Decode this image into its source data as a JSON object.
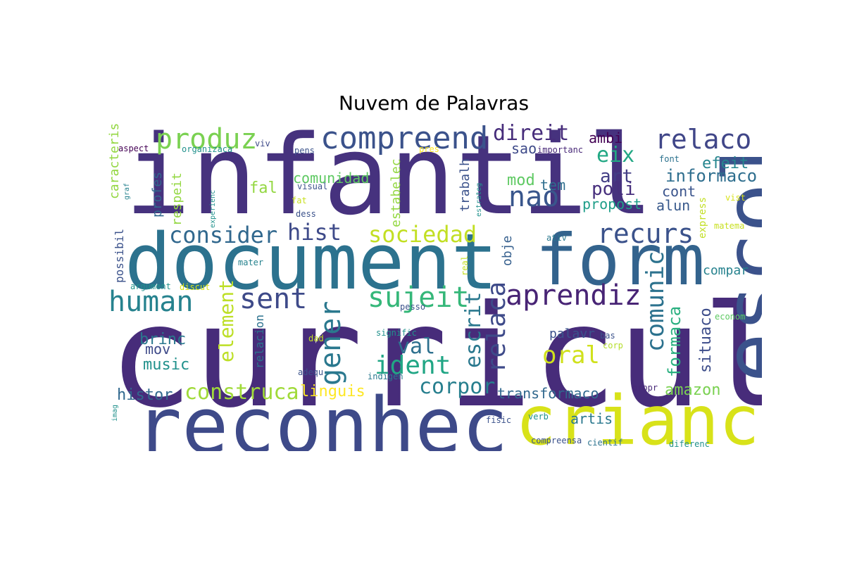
{
  "title": "Nuvem de Palavras",
  "chart_data": {
    "type": "wordcloud",
    "title": "Nuvem de Palavras",
    "colormap": "viridis",
    "background": "#ffffff",
    "words": [
      {
        "text": "curricul",
        "weight": 100,
        "color": "#472c7a",
        "vertical": false
      },
      {
        "text": "infantil",
        "weight": 92,
        "color": "#46327e",
        "vertical": false
      },
      {
        "text": "document",
        "weight": 76,
        "color": "#2c728e",
        "vertical": false
      },
      {
        "text": "reconhec",
        "weight": 74,
        "color": "#3e4a89",
        "vertical": false
      },
      {
        "text": "escol",
        "weight": 70,
        "color": "#3b528b",
        "vertical": true
      },
      {
        "text": "form",
        "weight": 66,
        "color": "#33638d",
        "vertical": false
      },
      {
        "text": "crianc",
        "weight": 62,
        "color": "#d8e219",
        "vertical": false
      },
      {
        "text": "compreend",
        "weight": 34,
        "color": "#3b528b",
        "vertical": false
      },
      {
        "text": "produz",
        "weight": 30,
        "color": "#7ad151",
        "vertical": false
      },
      {
        "text": "relaco",
        "weight": 28,
        "color": "#404688",
        "vertical": false
      },
      {
        "text": "nao",
        "weight": 28,
        "color": "#39568c",
        "vertical": false
      },
      {
        "text": "human",
        "weight": 28,
        "color": "#26828e",
        "vertical": false
      },
      {
        "text": "sent",
        "weight": 28,
        "color": "#3e4a89",
        "vertical": false
      },
      {
        "text": "gener",
        "weight": 28,
        "color": "#2a788e",
        "vertical": true
      },
      {
        "text": "aprendiz",
        "weight": 27,
        "color": "#482475",
        "vertical": false
      },
      {
        "text": "recurs",
        "weight": 27,
        "color": "#3b528b",
        "vertical": false
      },
      {
        "text": "sujeit",
        "weight": 26,
        "color": "#35b779",
        "vertical": false
      },
      {
        "text": "ident",
        "weight": 26,
        "color": "#21a685",
        "vertical": false
      },
      {
        "text": "relaca",
        "weight": 26,
        "color": "#3e4a89",
        "vertical": true
      },
      {
        "text": "oral",
        "weight": 24,
        "color": "#d0e11c",
        "vertical": false
      },
      {
        "text": "comunic",
        "weight": 24,
        "color": "#2c728e",
        "vertical": true
      },
      {
        "text": "consider",
        "weight": 22,
        "color": "#31688e",
        "vertical": false
      },
      {
        "text": "hist",
        "weight": 22,
        "color": "#3e4a89",
        "vertical": false
      },
      {
        "text": "sociedad",
        "weight": 22,
        "color": "#c2df23",
        "vertical": false
      },
      {
        "text": "construca",
        "weight": 22,
        "color": "#a0da39",
        "vertical": false
      },
      {
        "text": "corpor",
        "weight": 22,
        "color": "#277f8e",
        "vertical": false
      },
      {
        "text": "escrit",
        "weight": 22,
        "color": "#2a788e",
        "vertical": true
      },
      {
        "text": "val",
        "weight": 22,
        "color": "#2d708e",
        "vertical": false
      },
      {
        "text": "direit",
        "weight": 20,
        "color": "#472d7b",
        "vertical": false
      },
      {
        "text": "eix",
        "weight": 20,
        "color": "#22a884",
        "vertical": false
      },
      {
        "text": "element",
        "weight": 20,
        "color": "#bddf26",
        "vertical": true
      },
      {
        "text": "art",
        "weight": 18,
        "color": "#433e85",
        "vertical": false
      },
      {
        "text": "poli",
        "weight": 18,
        "color": "#472f7d",
        "vertical": false
      },
      {
        "text": "informaco",
        "weight": 17,
        "color": "#2e6e8e",
        "vertical": false
      },
      {
        "text": "formaca",
        "weight": 17,
        "color": "#29af7f",
        "vertical": true
      },
      {
        "text": "situaco",
        "weight": 17,
        "color": "#3d4d8a",
        "vertical": true
      },
      {
        "text": "amazon",
        "weight": 17,
        "color": "#7ad151",
        "vertical": false
      },
      {
        "text": "linguis",
        "weight": 17,
        "color": "#fde725",
        "vertical": false
      },
      {
        "text": "brinc",
        "weight": 17,
        "color": "#2a788e",
        "vertical": false
      },
      {
        "text": "music",
        "weight": 17,
        "color": "#21918c",
        "vertical": false
      },
      {
        "text": "histor",
        "weight": 17,
        "color": "#31688e",
        "vertical": false
      },
      {
        "text": "fal",
        "weight": 17,
        "color": "#93d741",
        "vertical": false
      },
      {
        "text": "mod",
        "weight": 16,
        "color": "#5ec962",
        "vertical": false
      },
      {
        "text": "tem",
        "weight": 16,
        "color": "#2e6e8e",
        "vertical": false
      },
      {
        "text": "propost",
        "weight": 16,
        "color": "#1f9e89",
        "vertical": false
      },
      {
        "text": "alun",
        "weight": 16,
        "color": "#38598c",
        "vertical": false
      },
      {
        "text": "cont",
        "weight": 16,
        "color": "#3a548c",
        "vertical": false
      },
      {
        "text": "efeit",
        "weight": 16,
        "color": "#25858e",
        "vertical": false
      },
      {
        "text": "compar",
        "weight": 15,
        "color": "#26828e",
        "vertical": false
      },
      {
        "text": "transformaco",
        "weight": 15,
        "color": "#31688e",
        "vertical": false
      },
      {
        "text": "palavr",
        "weight": 15,
        "color": "#3b528b",
        "vertical": false
      },
      {
        "text": "artis",
        "weight": 15,
        "color": "#2a788e",
        "vertical": false
      },
      {
        "text": "mov",
        "weight": 15,
        "color": "#3e4a89",
        "vertical": false
      },
      {
        "text": "comunidad",
        "weight": 15,
        "color": "#5ec962",
        "vertical": false
      },
      {
        "text": "ambi",
        "weight": 15,
        "color": "#440154",
        "vertical": false
      },
      {
        "text": "sao",
        "weight": 15,
        "color": "#3e4a89",
        "vertical": false
      },
      {
        "text": "obje",
        "weight": 15,
        "color": "#355f8d",
        "vertical": true
      },
      {
        "text": "trabalh",
        "weight": 15,
        "color": "#3b528b",
        "vertical": true
      },
      {
        "text": "estabelec",
        "weight": 14,
        "color": "#93d741",
        "vertical": true
      },
      {
        "text": "respeit",
        "weight": 14,
        "color": "#93d741",
        "vertical": true
      },
      {
        "text": "profes",
        "weight": 14,
        "color": "#31688e",
        "vertical": true
      },
      {
        "text": "caracteris",
        "weight": 14,
        "color": "#93d741",
        "vertical": true
      },
      {
        "text": "possibil",
        "weight": 13,
        "color": "#3b528b",
        "vertical": true
      },
      {
        "text": "relacion",
        "weight": 13,
        "color": "#2c728e",
        "vertical": true
      },
      {
        "text": "express",
        "weight": 13,
        "color": "#c2df23",
        "vertical": true
      },
      {
        "text": "importanc",
        "weight": 11,
        "color": "#482878",
        "vertical": false
      },
      {
        "text": "aspect",
        "weight": 10,
        "color": "#440154",
        "vertical": false
      },
      {
        "text": "organizaca",
        "weight": 10,
        "color": "#21918c",
        "vertical": false
      },
      {
        "text": "viv",
        "weight": 10,
        "color": "#3e4a89",
        "vertical": false
      },
      {
        "text": "pens",
        "weight": 10,
        "color": "#3b528b",
        "vertical": false
      },
      {
        "text": "pres",
        "weight": 10,
        "color": "#fde725",
        "vertical": false
      },
      {
        "text": "font",
        "weight": 10,
        "color": "#2c728e",
        "vertical": false
      },
      {
        "text": "visual",
        "weight": 10,
        "color": "#3b528b",
        "vertical": false
      },
      {
        "text": "fat",
        "weight": 10,
        "color": "#c8e020",
        "vertical": false
      },
      {
        "text": "dess",
        "weight": 10,
        "color": "#3b528b",
        "vertical": false
      },
      {
        "text": "vist",
        "weight": 10,
        "color": "#d8e219",
        "vertical": false
      },
      {
        "text": "matema",
        "weight": 10,
        "color": "#c8e020",
        "vertical": false
      },
      {
        "text": "ativ",
        "weight": 10,
        "color": "#2a788e",
        "vertical": false
      },
      {
        "text": "mater",
        "weight": 10,
        "color": "#26828e",
        "vertical": false
      },
      {
        "text": "argument",
        "weight": 10,
        "color": "#21918c",
        "vertical": false
      },
      {
        "text": "discut",
        "weight": 10,
        "color": "#d8e219",
        "vertical": false
      },
      {
        "text": "real",
        "weight": 10,
        "color": "#c2df23",
        "vertical": true
      },
      {
        "text": "pesso",
        "weight": 10,
        "color": "#3b528b",
        "vertical": false
      },
      {
        "text": "econom",
        "weight": 10,
        "color": "#5ec962",
        "vertical": false
      },
      {
        "text": "signific",
        "weight": 10,
        "color": "#21918c",
        "vertical": false
      },
      {
        "text": "dad",
        "weight": 10,
        "color": "#c2df23",
        "vertical": false
      },
      {
        "text": "bas",
        "weight": 10,
        "color": "#3b528b",
        "vertical": false
      },
      {
        "text": "corp",
        "weight": 10,
        "color": "#b5de2b",
        "vertical": false
      },
      {
        "text": "adequ",
        "weight": 10,
        "color": "#3b528b",
        "vertical": false
      },
      {
        "text": "indigen",
        "weight": 10,
        "color": "#2a788e",
        "vertical": false
      },
      {
        "text": "propr",
        "weight": 10,
        "color": "#482878",
        "vertical": false
      },
      {
        "text": "fisic",
        "weight": 10,
        "color": "#3b528b",
        "vertical": false
      },
      {
        "text": "verb",
        "weight": 10,
        "color": "#21918c",
        "vertical": false
      },
      {
        "text": "compreensa",
        "weight": 10,
        "color": "#3b528b",
        "vertical": false
      },
      {
        "text": "cientif",
        "weight": 10,
        "color": "#2c728e",
        "vertical": false
      },
      {
        "text": "diferenc",
        "weight": 10,
        "color": "#21918c",
        "vertical": false
      },
      {
        "text": "experienc",
        "weight": 8,
        "color": "#21918c",
        "vertical": true
      },
      {
        "text": "estrateg",
        "weight": 8,
        "color": "#21918c",
        "vertical": true
      },
      {
        "text": "graf",
        "weight": 8,
        "color": "#26828e",
        "vertical": true
      },
      {
        "text": "imag",
        "weight": 8,
        "color": "#21918c",
        "vertical": true
      }
    ]
  }
}
